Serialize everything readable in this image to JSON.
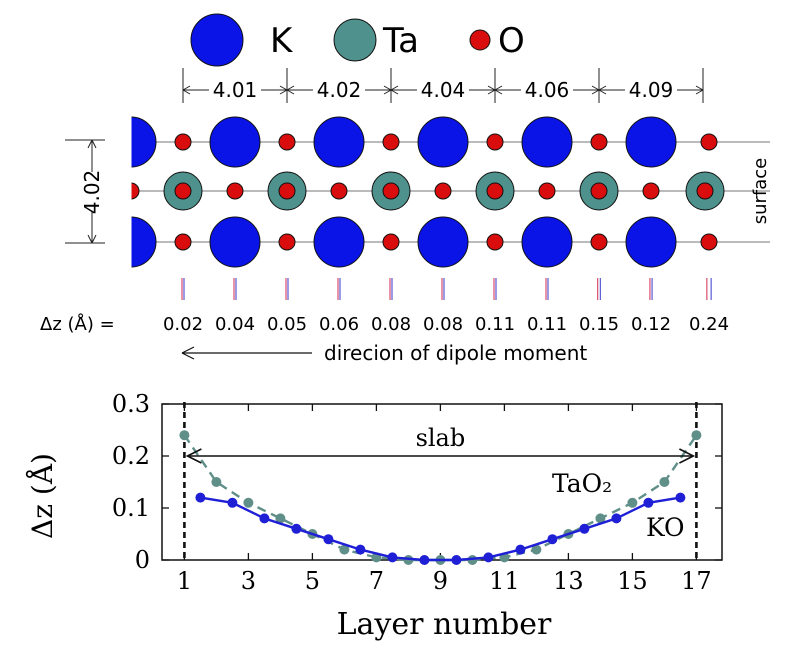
{
  "legend": {
    "items": [
      {
        "symbol": "K",
        "color": "#0a14e6",
        "kind": "large"
      },
      {
        "symbol": "Ta",
        "color": "#4f918c",
        "kind": "medium"
      },
      {
        "symbol": "O",
        "color": "#d90d0d",
        "kind": "small"
      }
    ]
  },
  "structure": {
    "lattice_spacings": [
      "4.01",
      "4.02",
      "4.04",
      "4.06",
      "4.09"
    ],
    "vertical_spacing": "4.02",
    "surface_label": "surface",
    "delta_z_label": "Δz (Å) =",
    "delta_z_values": [
      "0.02",
      "0.04",
      "0.05",
      "0.06",
      "0.08",
      "0.08",
      "0.11",
      "0.11",
      "0.15",
      "0.12",
      "0.24"
    ],
    "dipole_label": "direcion of dipole moment",
    "colors": {
      "K": "#0a14e6",
      "Ta": "#4f918c",
      "O": "#d90d0d"
    }
  },
  "chart_data": {
    "type": "line",
    "xlabel": "Layer number",
    "ylabel": "Δz (Å)",
    "xlim": [
      0.3,
      17.8
    ],
    "ylim": [
      0,
      0.3
    ],
    "xticks": [
      1,
      3,
      5,
      7,
      9,
      11,
      13,
      15,
      17
    ],
    "yticks": [
      0,
      0.1,
      0.2,
      0.3
    ],
    "ytick_labels": [
      "0",
      "0.1",
      "0.2",
      "0.3"
    ],
    "grid": false,
    "vlines": [
      1,
      17
    ],
    "annotation": {
      "text": "slab",
      "from": 1,
      "to": 17,
      "y": 0.2
    },
    "series": [
      {
        "name": "TaO₂",
        "color": "#5f8f88",
        "dash": true,
        "x": [
          1,
          2,
          3,
          4,
          5,
          6,
          7,
          8,
          9,
          10,
          11,
          12,
          13,
          14,
          15,
          16,
          17
        ],
        "y": [
          0.24,
          0.15,
          0.11,
          0.08,
          0.05,
          0.02,
          0.005,
          0.0,
          0.0,
          0.0,
          0.005,
          0.02,
          0.05,
          0.08,
          0.11,
          0.15,
          0.24
        ]
      },
      {
        "name": "KO",
        "color": "#1f1fd6",
        "dash": false,
        "x": [
          1.5,
          2.5,
          3.5,
          4.5,
          5.5,
          6.5,
          7.5,
          8.5,
          9.5,
          10.5,
          11.5,
          12.5,
          13.5,
          14.5,
          15.5,
          16.5
        ],
        "y": [
          0.12,
          0.11,
          0.08,
          0.06,
          0.04,
          0.02,
          0.005,
          0.0,
          0.0,
          0.005,
          0.02,
          0.04,
          0.06,
          0.08,
          0.11,
          0.12
        ]
      }
    ]
  }
}
